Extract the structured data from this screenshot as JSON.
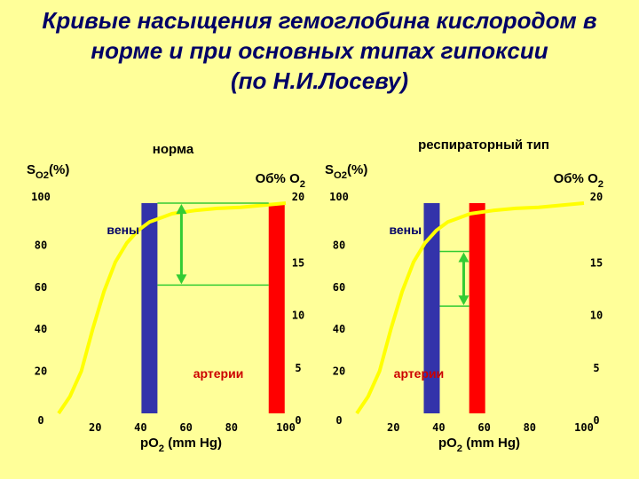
{
  "title": {
    "line1": "Кривые насыщения гемоглобина кислородом в",
    "line2": "норме и при основных типах гипоксии",
    "line3": "(по Н.И.Лосеву)"
  },
  "colors": {
    "background": "#ffff99",
    "title": "#000066",
    "curve": "#ffff00",
    "arrow": "#33cc33",
    "vein_bar": "#3333aa",
    "artery_bar": "#ff0000",
    "label_red": "#cc0000",
    "label_blue": "#000066"
  },
  "chart_data": [
    {
      "type": "line",
      "title": "норма",
      "ylabel_left": "S",
      "ylabel_left_sub": "O2",
      "ylabel_left_suffix": "(%)",
      "ylabel_right": "Об% О",
      "ylabel_right_sub": "2",
      "xlabel": "pO",
      "xlabel_sub": "2",
      "xlabel_suffix": " (mm Hg)",
      "xlim": [
        0,
        100
      ],
      "ylim": [
        0,
        100
      ],
      "y_right_lim": [
        0,
        20
      ],
      "x_ticks": [
        "20",
        "40",
        "60",
        "80",
        "100"
      ],
      "y_ticks": [
        "0",
        "20",
        "40",
        "60",
        "80",
        "100"
      ],
      "y_right_ticks": [
        "0",
        "5",
        "10",
        "15",
        "20"
      ],
      "series": [
        {
          "x": [
            0,
            5,
            10,
            15,
            20,
            25,
            30,
            35,
            40,
            45,
            50,
            60,
            70,
            80,
            90,
            100
          ],
          "y": [
            0,
            8,
            20,
            40,
            58,
            72,
            81,
            87,
            91,
            93,
            95,
            96.5,
            97.5,
            98,
            99,
            100
          ]
        }
      ],
      "vein_bar_x": 40,
      "artery_bar_x": 96,
      "arrow_y": [
        100,
        61
      ],
      "bar_labels": {
        "veins": "вены",
        "arteries": "артерии"
      }
    },
    {
      "type": "line",
      "title": "респираторный тип",
      "ylabel_left": "S",
      "ylabel_left_sub": "O2",
      "ylabel_left_suffix": "(%)",
      "ylabel_right": "Об% О",
      "ylabel_right_sub": "2",
      "xlabel": "pO",
      "xlabel_sub": "2",
      "xlabel_suffix": " (mm Hg)",
      "xlim": [
        0,
        100
      ],
      "ylim": [
        0,
        100
      ],
      "y_right_lim": [
        0,
        20
      ],
      "x_ticks": [
        "20",
        "40",
        "60",
        "80",
        "100"
      ],
      "y_ticks": [
        "0",
        "20",
        "40",
        "60",
        "80",
        "100"
      ],
      "y_right_ticks": [
        "0",
        "5",
        "10",
        "15",
        "20"
      ],
      "series": [
        {
          "x": [
            0,
            5,
            10,
            15,
            20,
            25,
            30,
            35,
            40,
            45,
            50,
            60,
            70,
            80,
            90,
            100
          ],
          "y": [
            0,
            8,
            20,
            40,
            58,
            72,
            81,
            87,
            91,
            93,
            95,
            96.5,
            97.5,
            98,
            99,
            100
          ]
        }
      ],
      "vein_bar_x": 33,
      "artery_bar_x": 53,
      "arrow_y": [
        77,
        51
      ],
      "bar_labels": {
        "veins": "вены",
        "arteries": "артерии"
      }
    }
  ]
}
